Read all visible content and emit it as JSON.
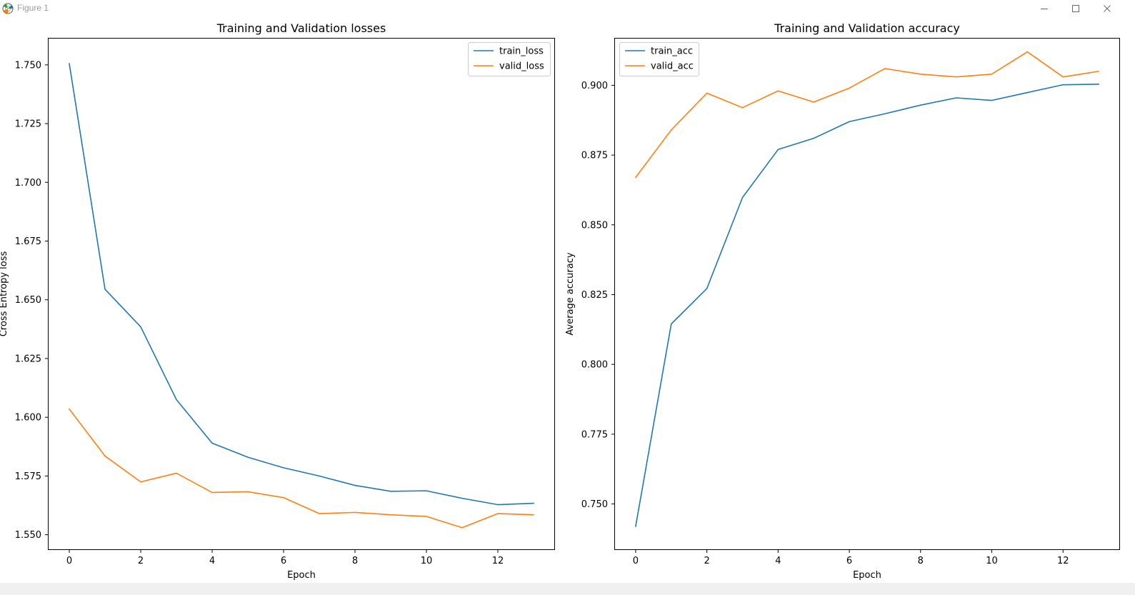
{
  "window": {
    "title": "Figure 1",
    "icons": {
      "app": "matplotlib-icon",
      "minimize": "minimize-icon",
      "maximize": "maximize-icon",
      "close": "close-icon"
    }
  },
  "chart_data": [
    {
      "type": "line",
      "title": "Training and Validation losses",
      "xlabel": "Epoch",
      "ylabel": "Cross Entropy loss",
      "x": [
        0,
        1,
        2,
        3,
        4,
        5,
        6,
        7,
        8,
        9,
        10,
        11,
        12,
        13
      ],
      "xlim": [
        -0.6,
        13.6
      ],
      "ylim": [
        1.5435,
        1.7615
      ],
      "xticks": [
        0,
        2,
        4,
        6,
        8,
        10,
        12
      ],
      "xtick_labels": [
        "0",
        "2",
        "4",
        "6",
        "8",
        "10",
        "12"
      ],
      "yticks": [
        1.55,
        1.575,
        1.6,
        1.625,
        1.65,
        1.675,
        1.7,
        1.725,
        1.75
      ],
      "ytick_labels": [
        "1.550",
        "1.575",
        "1.600",
        "1.625",
        "1.650",
        "1.675",
        "1.700",
        "1.725",
        "1.750"
      ],
      "legend_position": "upper-right",
      "grid": false,
      "series": [
        {
          "name": "train_loss",
          "color": "#1f77b4",
          "values": [
            1.7505,
            1.6545,
            1.6385,
            1.6075,
            1.589,
            1.583,
            1.5785,
            1.575,
            1.571,
            1.5685,
            1.5687,
            1.5655,
            1.5628,
            1.5634
          ]
        },
        {
          "name": "valid_loss",
          "color": "#ff7f0e",
          "values": [
            1.6035,
            1.5835,
            1.5725,
            1.5762,
            1.568,
            1.5683,
            1.5658,
            1.559,
            1.5595,
            1.5585,
            1.5578,
            1.553,
            1.559,
            1.5585
          ]
        }
      ]
    },
    {
      "type": "line",
      "title": "Training and Validation accuracy",
      "xlabel": "Epoch",
      "ylabel": "Average accuracy",
      "x": [
        0,
        1,
        2,
        3,
        4,
        5,
        6,
        7,
        8,
        9,
        10,
        11,
        12,
        13
      ],
      "xlim": [
        -0.6,
        13.6
      ],
      "ylim": [
        0.7335,
        0.917
      ],
      "xticks": [
        0,
        2,
        4,
        6,
        8,
        10,
        12
      ],
      "xtick_labels": [
        "0",
        "2",
        "4",
        "6",
        "8",
        "10",
        "12"
      ],
      "yticks": [
        0.75,
        0.775,
        0.8,
        0.825,
        0.85,
        0.875,
        0.9
      ],
      "ytick_labels": [
        "0.750",
        "0.775",
        "0.800",
        "0.825",
        "0.850",
        "0.875",
        "0.900"
      ],
      "legend_position": "upper-left",
      "grid": false,
      "series": [
        {
          "name": "train_acc",
          "color": "#1f77b4",
          "values": [
            0.742,
            0.8145,
            0.8272,
            0.8598,
            0.877,
            0.881,
            0.887,
            0.8898,
            0.8929,
            0.8955,
            0.8946,
            0.8974,
            0.9002,
            0.9004
          ]
        },
        {
          "name": "valid_acc",
          "color": "#ff7f0e",
          "values": [
            0.867,
            0.884,
            0.8972,
            0.892,
            0.898,
            0.894,
            0.899,
            0.906,
            0.904,
            0.903,
            0.904,
            0.912,
            0.903,
            0.905
          ]
        }
      ]
    }
  ]
}
